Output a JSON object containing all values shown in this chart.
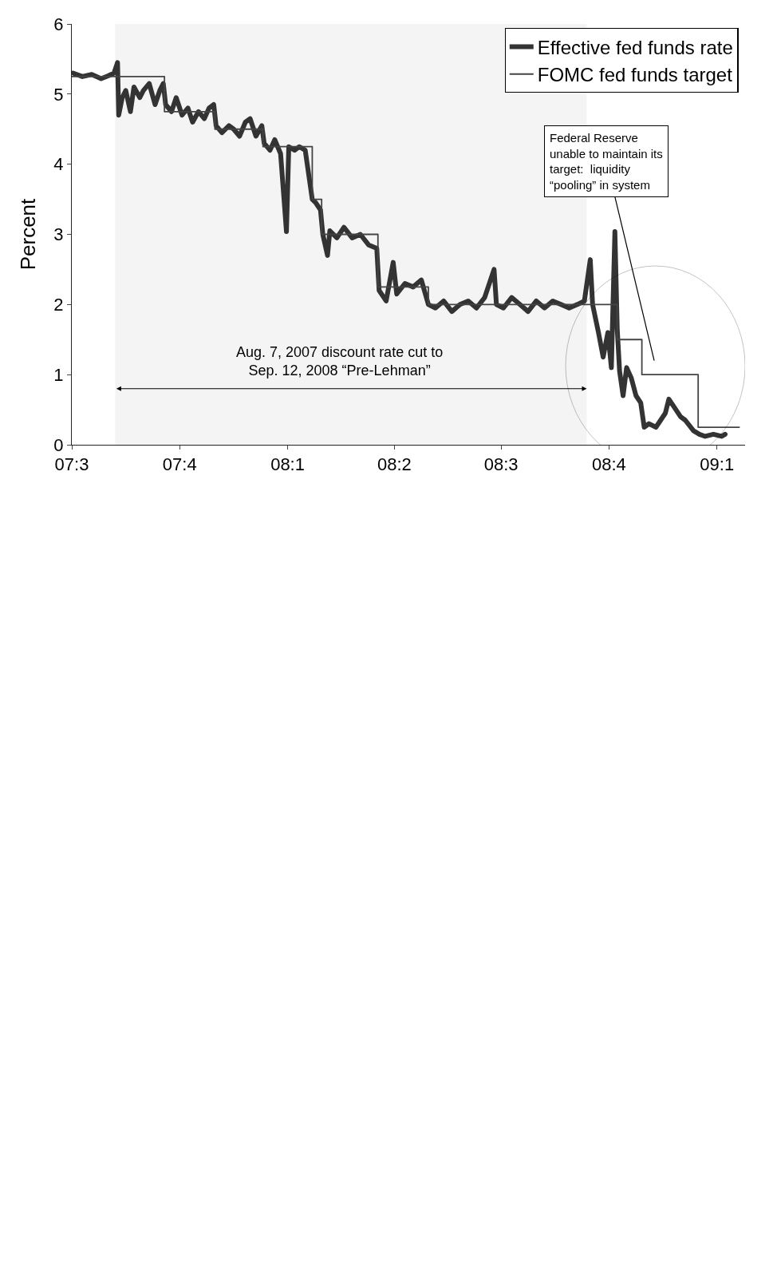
{
  "chart_data": {
    "type": "line",
    "ylabel": "Percent",
    "xlim": [
      "2007-07-01",
      "2009-01-25"
    ],
    "xticks": [
      {
        "value": "2007-07-01",
        "label": "07:3"
      },
      {
        "value": "2007-10-01",
        "label": "07:4"
      },
      {
        "value": "2008-01-01",
        "label": "08:1"
      },
      {
        "value": "2008-04-01",
        "label": "08:2"
      },
      {
        "value": "2008-07-01",
        "label": "08:3"
      },
      {
        "value": "2008-10-01",
        "label": "08:4"
      },
      {
        "value": "2009-01-01",
        "label": "09:1"
      }
    ],
    "ylim": [
      0,
      6
    ],
    "yticks": [
      0,
      1,
      2,
      3,
      4,
      5,
      6
    ],
    "grid": false,
    "legend": "top right",
    "marker": "none",
    "series": [
      {
        "name": "Effective fed funds rate",
        "color": "#333333",
        "x": [
          "2007-07-02",
          "2007-07-10",
          "2007-07-18",
          "2007-07-26",
          "2007-08-01",
          "2007-08-06",
          "2007-08-08",
          "2007-08-09",
          "2007-08-10",
          "2007-08-13",
          "2007-08-16",
          "2007-08-20",
          "2007-08-23",
          "2007-08-28",
          "2007-08-31",
          "2007-09-05",
          "2007-09-10",
          "2007-09-14",
          "2007-09-17",
          "2007-09-19",
          "2007-09-24",
          "2007-09-28",
          "2007-10-03",
          "2007-10-08",
          "2007-10-12",
          "2007-10-17",
          "2007-10-22",
          "2007-10-26",
          "2007-10-30",
          "2007-11-01",
          "2007-11-06",
          "2007-11-12",
          "2007-11-16",
          "2007-11-21",
          "2007-11-26",
          "2007-11-30",
          "2007-12-05",
          "2007-12-10",
          "2007-12-12",
          "2007-12-17",
          "2007-12-21",
          "2007-12-26",
          "2007-12-31",
          "2008-01-02",
          "2008-01-07",
          "2008-01-11",
          "2008-01-16",
          "2008-01-22",
          "2008-01-25",
          "2008-01-29",
          "2008-01-31",
          "2008-02-04",
          "2008-02-06",
          "2008-02-12",
          "2008-02-18",
          "2008-02-25",
          "2008-03-03",
          "2008-03-10",
          "2008-03-17",
          "2008-03-19",
          "2008-03-25",
          "2008-03-31",
          "2008-04-03",
          "2008-04-10",
          "2008-04-17",
          "2008-04-24",
          "2008-04-30",
          "2008-05-06",
          "2008-05-13",
          "2008-05-20",
          "2008-05-27",
          "2008-06-03",
          "2008-06-10",
          "2008-06-17",
          "2008-06-25",
          "2008-06-27",
          "2008-07-03",
          "2008-07-10",
          "2008-07-17",
          "2008-07-24",
          "2008-07-31",
          "2008-08-07",
          "2008-08-14",
          "2008-08-21",
          "2008-08-28",
          "2008-09-04",
          "2008-09-10",
          "2008-09-15",
          "2008-09-17",
          "2008-09-22",
          "2008-09-26",
          "2008-09-30",
          "2008-10-03",
          "2008-10-06",
          "2008-10-08",
          "2008-10-10",
          "2008-10-13",
          "2008-10-16",
          "2008-10-20",
          "2008-10-24",
          "2008-10-28",
          "2008-10-31",
          "2008-11-04",
          "2008-11-10",
          "2008-11-14",
          "2008-11-18",
          "2008-11-21",
          "2008-11-25",
          "2008-12-01",
          "2008-12-05",
          "2008-12-12",
          "2008-12-17",
          "2008-12-22",
          "2008-12-29",
          "2009-01-05",
          "2009-01-08"
        ],
        "values": [
          5.3,
          5.25,
          5.28,
          5.22,
          5.26,
          5.3,
          5.4,
          5.45,
          4.7,
          4.95,
          5.05,
          4.75,
          5.1,
          4.95,
          5.05,
          5.15,
          4.85,
          5.05,
          5.15,
          4.85,
          4.75,
          4.95,
          4.7,
          4.8,
          4.6,
          4.75,
          4.65,
          4.8,
          4.85,
          4.55,
          4.45,
          4.55,
          4.5,
          4.4,
          4.6,
          4.65,
          4.4,
          4.55,
          4.3,
          4.2,
          4.35,
          4.15,
          3.04,
          4.25,
          4.2,
          4.25,
          4.2,
          3.5,
          3.45,
          3.35,
          3.0,
          2.7,
          3.05,
          2.95,
          3.1,
          2.95,
          3.0,
          2.85,
          2.8,
          2.2,
          2.05,
          2.6,
          2.15,
          2.3,
          2.25,
          2.35,
          2.0,
          1.95,
          2.05,
          1.9,
          2.0,
          2.05,
          1.95,
          2.1,
          2.5,
          2.0,
          1.95,
          2.1,
          2.0,
          1.9,
          2.05,
          1.95,
          2.05,
          2.0,
          1.95,
          2.0,
          2.05,
          2.64,
          2.0,
          1.6,
          1.25,
          1.6,
          1.1,
          3.04,
          1.65,
          1.05,
          0.7,
          1.1,
          0.95,
          0.7,
          0.6,
          0.25,
          0.3,
          0.25,
          0.35,
          0.45,
          0.65,
          0.55,
          0.4,
          0.35,
          0.2,
          0.15,
          0.12,
          0.15,
          0.12,
          0.15
        ]
      },
      {
        "name": "FOMC fed funds target",
        "type": "step",
        "color": "#444444",
        "x": [
          "2007-07-01",
          "2007-09-18",
          "2007-10-31",
          "2007-12-11",
          "2008-01-22",
          "2008-01-30",
          "2008-03-18",
          "2008-04-30",
          "2008-10-08",
          "2008-10-29",
          "2008-12-16",
          "2009-01-20"
        ],
        "values": [
          5.25,
          4.75,
          4.5,
          4.25,
          3.5,
          3.0,
          2.25,
          2.0,
          1.5,
          1.0,
          0.25,
          0.25
        ]
      }
    ],
    "bands": [
      {
        "axis": "x",
        "from": "2007-08-07",
        "to": "2008-09-12",
        "label": "Aug. 7, 2007 discount rate cut to\nSep. 12, 2008 “Pre-Lehman”",
        "color": "#d9d9d9"
      }
    ],
    "annotations": [
      "Federal Reserve\nunable to maintain its\ntarget:  liquidity\n“pooling” in system"
    ]
  }
}
